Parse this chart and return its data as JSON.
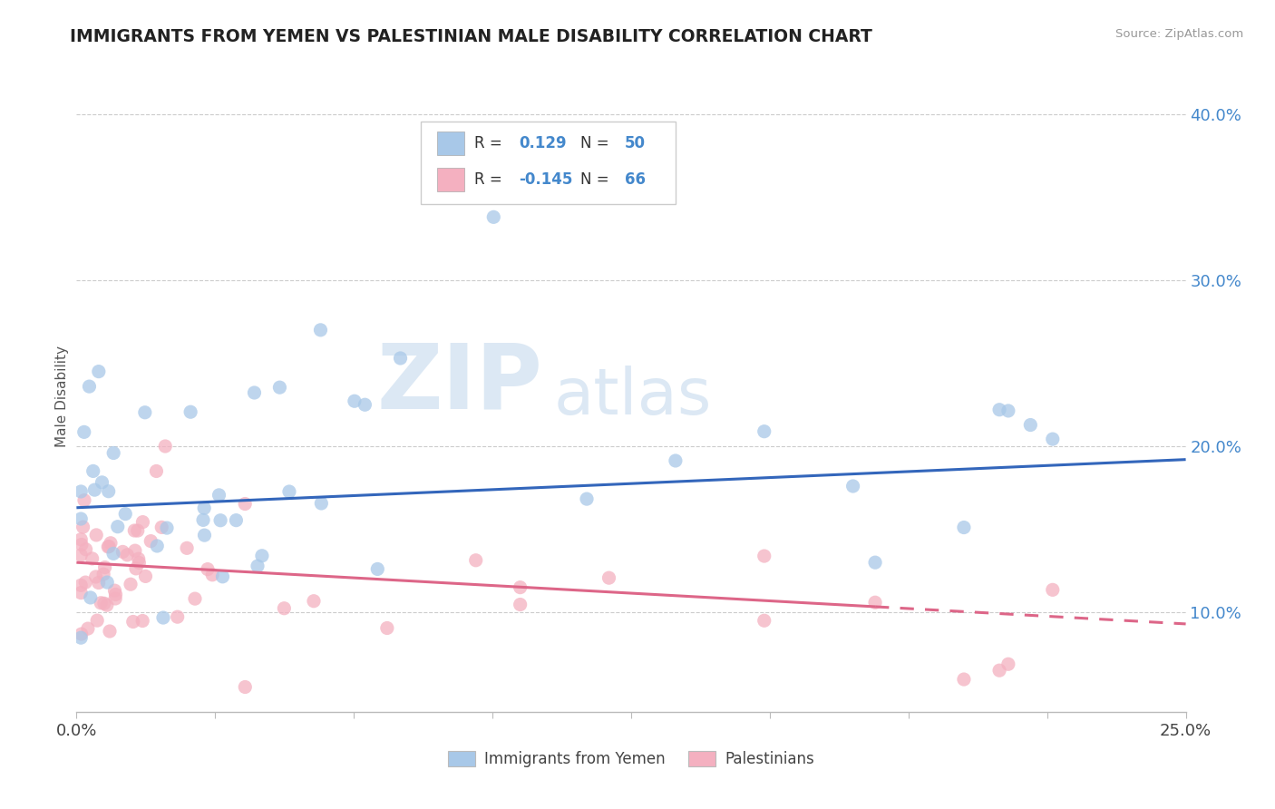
{
  "title": "IMMIGRANTS FROM YEMEN VS PALESTINIAN MALE DISABILITY CORRELATION CHART",
  "source": "Source: ZipAtlas.com",
  "ylabel": "Male Disability",
  "xlim": [
    0.0,
    0.25
  ],
  "ylim": [
    0.04,
    0.42
  ],
  "yticks": [
    0.1,
    0.2,
    0.3,
    0.4
  ],
  "ytick_labels": [
    "10.0%",
    "20.0%",
    "30.0%",
    "40.0%"
  ],
  "xtick_labels": [
    "0.0%",
    "25.0%"
  ],
  "series1_name": "Immigrants from Yemen",
  "series1_color": "#a8c8e8",
  "series1_line_color": "#3366bb",
  "series1_R": "0.129",
  "series1_N": "50",
  "series2_name": "Palestinians",
  "series2_color": "#f4b0c0",
  "series2_line_color": "#dd6688",
  "series2_R": "-0.145",
  "series2_N": "66",
  "watermark_zip": "ZIP",
  "watermark_atlas": "atlas",
  "background_color": "#ffffff",
  "grid_color": "#cccccc",
  "accent_color": "#4488cc",
  "line1_y0": 0.163,
  "line1_y1": 0.192,
  "line2_y0": 0.13,
  "line2_y1": 0.093
}
